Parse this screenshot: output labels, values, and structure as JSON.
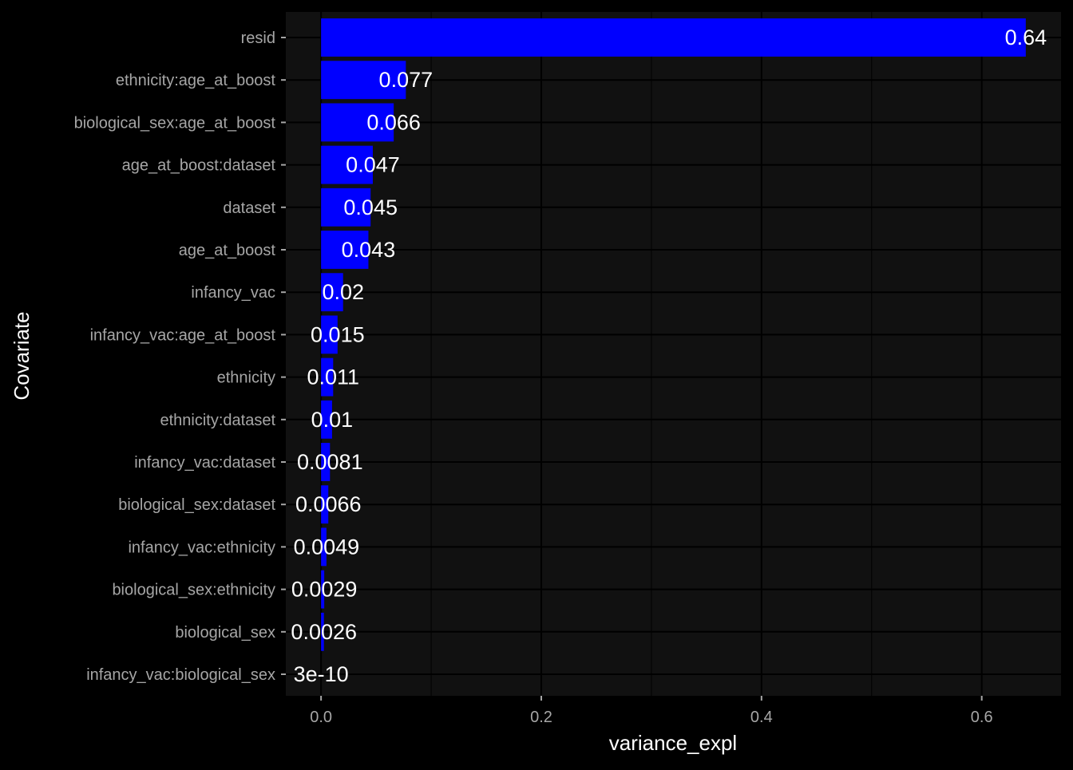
{
  "chart_data": {
    "type": "bar",
    "orientation": "horizontal",
    "xlabel": "variance_expl",
    "ylabel": "Covariate",
    "xlim": [
      -0.032,
      0.672
    ],
    "x_ticks": [
      {
        "value": 0.0,
        "label": "0.0"
      },
      {
        "value": 0.2,
        "label": "0.2"
      },
      {
        "value": 0.4,
        "label": "0.4"
      },
      {
        "value": 0.6,
        "label": "0.6"
      }
    ],
    "x_minor_ticks": [
      0.1,
      0.3,
      0.5
    ],
    "grid": true,
    "bar_color": "#0000FF",
    "panel_background": "#111111",
    "page_background": "#000000",
    "gridline_color": "#000000",
    "label_color": "#FFFFFF",
    "tick_label_color": "#A6A6A6",
    "categories": [
      "resid",
      "ethnicity:age_at_boost",
      "biological_sex:age_at_boost",
      "age_at_boost:dataset",
      "dataset",
      "age_at_boost",
      "infancy_vac",
      "infancy_vac:age_at_boost",
      "ethnicity",
      "ethnicity:dataset",
      "infancy_vac:dataset",
      "biological_sex:dataset",
      "infancy_vac:ethnicity",
      "biological_sex:ethnicity",
      "biological_sex",
      "infancy_vac:biological_sex"
    ],
    "values": [
      0.64,
      0.077,
      0.066,
      0.047,
      0.045,
      0.043,
      0.02,
      0.015,
      0.011,
      0.01,
      0.0081,
      0.0066,
      0.0049,
      0.0029,
      0.0026,
      3e-10
    ],
    "value_labels": [
      "0.64",
      "0.077",
      "0.066",
      "0.047",
      "0.045",
      "0.043",
      "0.02",
      "0.015",
      "0.011",
      "0.01",
      "0.0081",
      "0.0066",
      "0.0049",
      "0.0029",
      "0.0026",
      "3e-10"
    ]
  }
}
